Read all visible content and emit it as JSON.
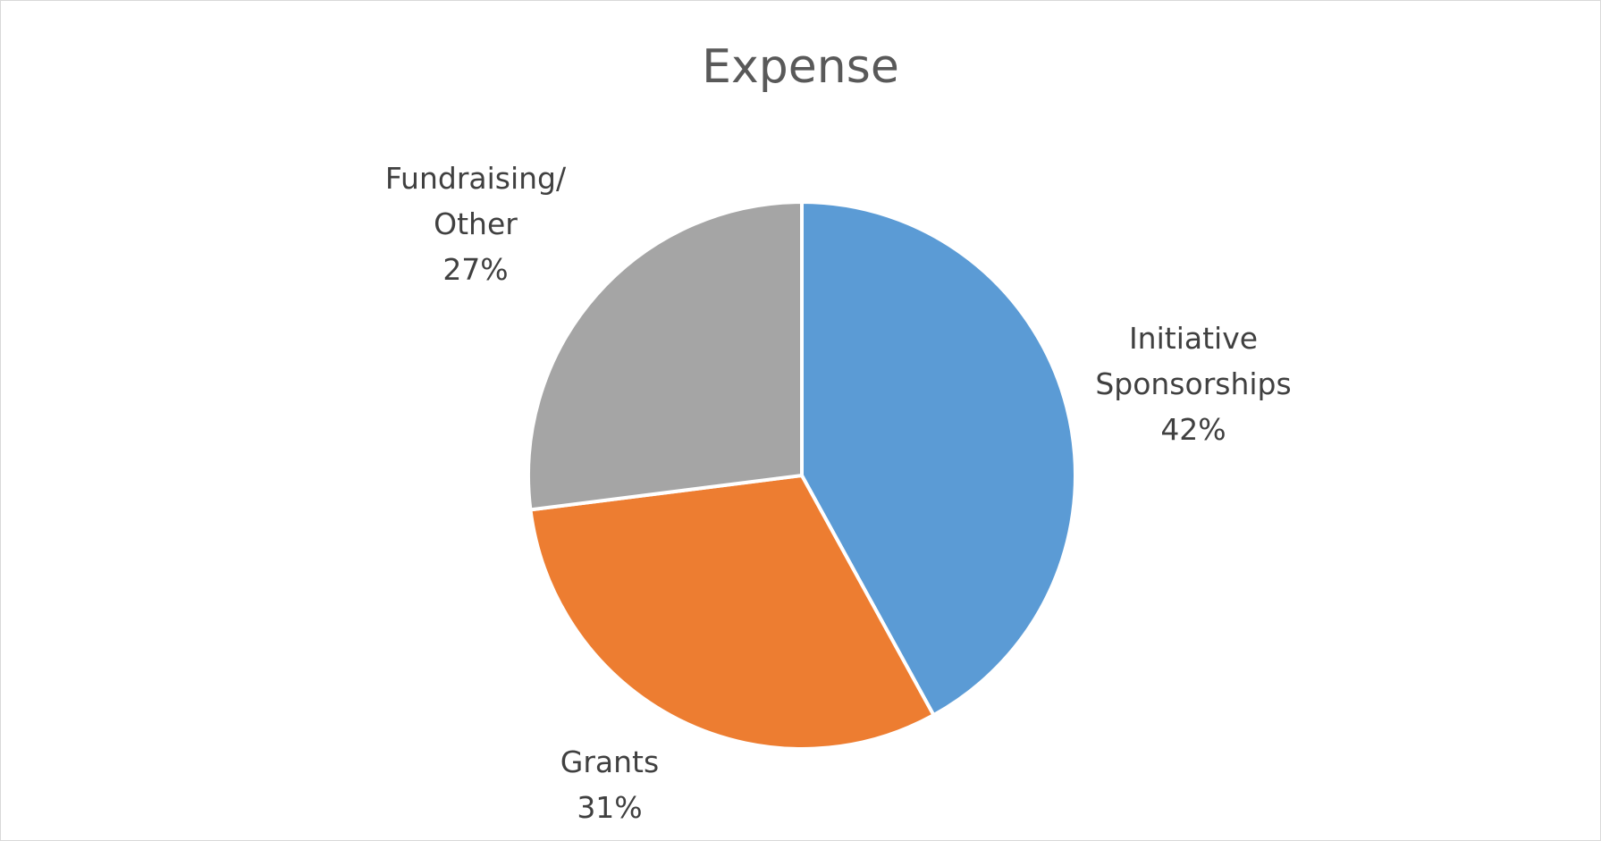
{
  "chart_data": {
    "type": "pie",
    "title": "Expense",
    "categories": [
      "Initiative Sponsorships",
      "Grants",
      "Fundraising/ Other"
    ],
    "values": [
      42,
      31,
      27
    ],
    "value_labels": [
      "42%",
      "31%",
      "27%"
    ],
    "colors": [
      "#5b9bd5",
      "#ed7d31",
      "#a5a5a5"
    ]
  }
}
